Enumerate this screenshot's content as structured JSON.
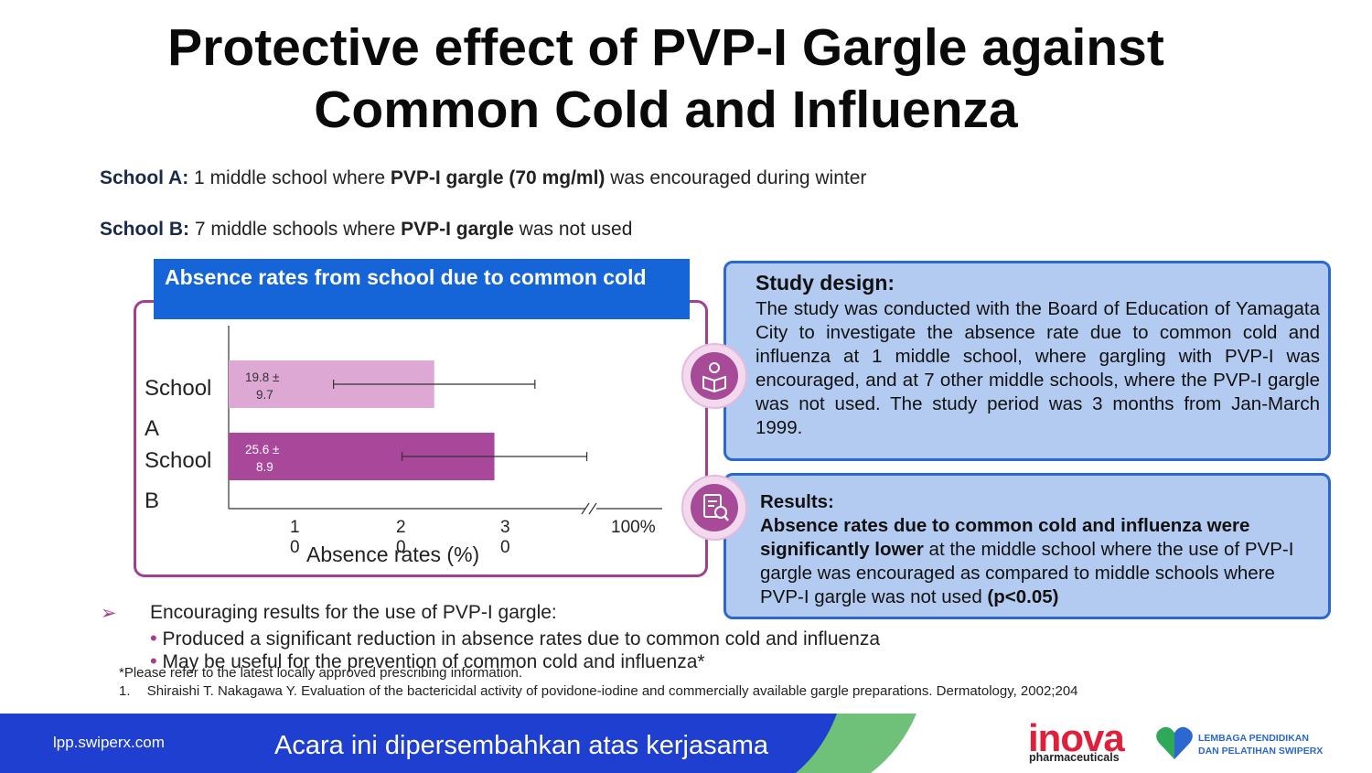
{
  "title": {
    "line1": "Protective effect of PVP-I Gargle against",
    "line2": "Common Cold and Influenza"
  },
  "school_a": {
    "label": "School A:",
    "text1": " 1 middle school where ",
    "bold": "PVP-I gargle (70 mg/ml)",
    "text2": " was encouraged during winter"
  },
  "school_b": {
    "label": "School B:",
    "text1": " 7 middle schools where ",
    "bold": "PVP-I gargle",
    "text2": " was not used"
  },
  "chart_panel": {
    "header": "Absence rates from school due to common cold"
  },
  "chart_data": {
    "type": "bar",
    "orientation": "horizontal",
    "categories": [
      "School A",
      "School B"
    ],
    "values": [
      19.8,
      25.6
    ],
    "errors": [
      9.7,
      8.9
    ],
    "value_labels": [
      "19.8 ± 9.7",
      "25.6 ± 8.9"
    ],
    "xlabel": "Absence rates (%)",
    "xticks": [
      "10",
      "20",
      "30",
      "100%"
    ],
    "axis_break": true,
    "colors": [
      "#dea8d4",
      "#a9479a"
    ]
  },
  "study_design": {
    "title": "Study design:",
    "body": "The study was conducted with the Board of Education of Yamagata City to investigate the absence rate due to common cold and influenza at 1 middle school, where gargling with PVP-I was encouraged, and at 7 other middle schools, where the PVP-I gargle was not used. The study period was 3 months from Jan-March 1999."
  },
  "results": {
    "title": "Results:",
    "bold1": "Absence rates due to common cold and influenza were significantly lower",
    "text1": " at the middle school where the use of PVP-I gargle was encouraged as compared to middle schools where PVP-I gargle was not used ",
    "bold2": "(p<0.05)"
  },
  "icons": {
    "study": "reading-person-icon",
    "results": "document-search-icon"
  },
  "bullets": {
    "arrow": "➢",
    "main": "Encouraging results for the use of PVP-I gargle:",
    "items": [
      "Produced a significant reduction in absence rates due to common cold and influenza",
      "May be useful for the prevention of common cold and influenza*"
    ]
  },
  "footnote": "*Please refer to the latest locally approved prescribing information.",
  "reference": {
    "num": "1.",
    "text": "Shiraishi T. Nakagawa Y. Evaluation of the bactericidal activity of povidone-iodine and commercially available gargle preparations. Dermatology, 2002;204"
  },
  "footer": {
    "url": "lpp.swiperx.com",
    "text": "Acara ini dipersembahkan atas kerjasama",
    "logo1": "inova",
    "logo1_sub": "pharmaceuticals",
    "logo2_line1": "LEMBAGA PENDIDIKAN",
    "logo2_line2": "DAN PELATIHAN SWIPERX"
  },
  "colors": {
    "accent": "#a33f8e",
    "header_blue": "#1565d8",
    "panel_fill": "#b4cbf1",
    "panel_border": "#2b68cf",
    "footer_blue": "#1f3fd0",
    "footer_green": "#6fc17a"
  }
}
